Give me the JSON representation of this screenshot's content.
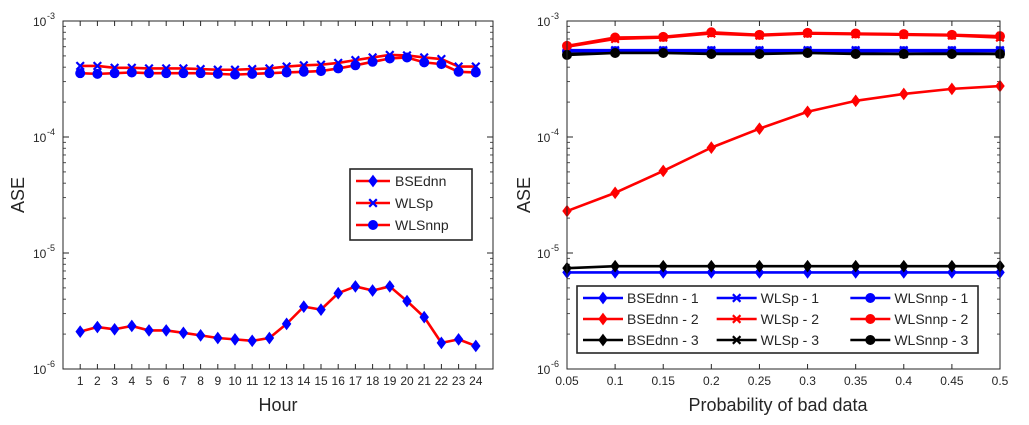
{
  "chart_data": [
    {
      "type": "line",
      "yscale": "log",
      "ylim": [
        1e-06,
        0.001
      ],
      "xlim": [
        0,
        25
      ],
      "xlabel": "Hour",
      "ylabel": "ASE",
      "x": [
        1,
        2,
        3,
        4,
        5,
        6,
        7,
        8,
        9,
        10,
        11,
        12,
        13,
        14,
        15,
        16,
        17,
        18,
        19,
        20,
        21,
        22,
        23,
        24
      ],
      "x_tick_labels": [
        "1",
        "2",
        "3",
        "4",
        "5",
        "6",
        "7",
        "8",
        "9",
        "10",
        "11",
        "12",
        "13",
        "14",
        "15",
        "16",
        "17",
        "18",
        "19",
        "20",
        "21",
        "22",
        "23",
        "24"
      ],
      "y_tick_labels": [
        {
          "base": "10",
          "exp": "-6",
          "value": 1e-06
        },
        {
          "base": "10",
          "exp": "-5",
          "value": 1e-05
        },
        {
          "base": "10",
          "exp": "-4",
          "value": 0.0001
        },
        {
          "base": "10",
          "exp": "-3",
          "value": 0.001
        }
      ],
      "legend_position": "center-right",
      "series": [
        {
          "name": "BSEdnn",
          "marker": "diamond",
          "line_color": "#ff0000",
          "marker_color": "#0000ff",
          "values": [
            2.1e-06,
            2.3e-06,
            2.2e-06,
            2.35e-06,
            2.15e-06,
            2.15e-06,
            2.05e-06,
            1.95e-06,
            1.85e-06,
            1.8e-06,
            1.75e-06,
            1.85e-06,
            2.45e-06,
            3.45e-06,
            3.25e-06,
            4.5e-06,
            5.15e-06,
            4.75e-06,
            5.15e-06,
            3.85e-06,
            2.8e-06,
            1.68e-06,
            1.8e-06,
            1.58e-06
          ]
        },
        {
          "name": "WLSp",
          "marker": "x",
          "line_color": "#ff0000",
          "marker_color": "#0000ff",
          "values": [
            0.00041,
            0.00041,
            0.000395,
            0.000395,
            0.00039,
            0.00039,
            0.00039,
            0.000385,
            0.00038,
            0.00038,
            0.000385,
            0.00039,
            0.000405,
            0.000415,
            0.00042,
            0.000435,
            0.00046,
            0.000485,
            0.00051,
            0.000505,
            0.000485,
            0.00047,
            0.000405,
            0.000405
          ]
        },
        {
          "name": "WLSnnp",
          "marker": "circle",
          "line_color": "#ff0000",
          "marker_color": "#0000ff",
          "values": [
            0.000355,
            0.00035,
            0.000355,
            0.00036,
            0.000355,
            0.000355,
            0.000355,
            0.000355,
            0.00035,
            0.000345,
            0.00035,
            0.000355,
            0.00036,
            0.000365,
            0.00037,
            0.00039,
            0.000415,
            0.000445,
            0.000475,
            0.000485,
            0.00044,
            0.000425,
            0.000365,
            0.00036
          ]
        }
      ]
    },
    {
      "type": "line",
      "yscale": "log",
      "ylim": [
        1e-06,
        0.001
      ],
      "xlim": [
        0.05,
        0.5
      ],
      "xlabel": "Probability of bad data",
      "ylabel": "ASE",
      "x": [
        0.05,
        0.1,
        0.15,
        0.2,
        0.25,
        0.3,
        0.35,
        0.4,
        0.45,
        0.5
      ],
      "x_tick_labels": [
        "0.05",
        "0.1",
        "0.15",
        "0.2",
        "0.25",
        "0.3",
        "0.35",
        "0.4",
        "0.45",
        "0.5"
      ],
      "y_tick_labels": [
        {
          "base": "10",
          "exp": "-6",
          "value": 1e-06
        },
        {
          "base": "10",
          "exp": "-5",
          "value": 1e-05
        },
        {
          "base": "10",
          "exp": "-4",
          "value": 0.0001
        },
        {
          "base": "10",
          "exp": "-3",
          "value": 0.001
        }
      ],
      "legend_position": "bottom",
      "series": [
        {
          "name": "BSEdnn - 1",
          "marker": "diamond",
          "color": "#0000ff",
          "values": [
            6.8e-06,
            6.8e-06,
            6.8e-06,
            6.8e-06,
            6.8e-06,
            6.8e-06,
            6.8e-06,
            6.8e-06,
            6.8e-06,
            6.8e-06
          ]
        },
        {
          "name": "BSEdnn - 2",
          "marker": "diamond",
          "color": "#ff0000",
          "values": [
            2.3e-05,
            3.3e-05,
            5.1e-05,
            8.1e-05,
            0.000118,
            0.000165,
            0.000205,
            0.000235,
            0.00026,
            0.000275
          ]
        },
        {
          "name": "BSEdnn - 3",
          "marker": "diamond",
          "color": "#000000",
          "values": [
            7.4e-06,
            7.7e-06,
            7.7e-06,
            7.7e-06,
            7.7e-06,
            7.7e-06,
            7.7e-06,
            7.7e-06,
            7.7e-06,
            7.7e-06
          ]
        },
        {
          "name": "WLSp - 1",
          "marker": "x",
          "color": "#0000ff",
          "values": [
            0.00056,
            0.00056,
            0.00056,
            0.00056,
            0.00056,
            0.00056,
            0.00056,
            0.00056,
            0.00056,
            0.00056
          ]
        },
        {
          "name": "WLSp - 2",
          "marker": "x",
          "color": "#ff0000",
          "values": [
            0.0006,
            0.0007,
            0.00072,
            0.00078,
            0.00075,
            0.00078,
            0.00077,
            0.00076,
            0.00075,
            0.00072
          ]
        },
        {
          "name": "WLSp - 3",
          "marker": "x",
          "color": "#000000",
          "values": [
            0.00052,
            0.00054,
            0.00054,
            0.00053,
            0.00053,
            0.00054,
            0.00053,
            0.00052,
            0.00053,
            0.00052
          ]
        },
        {
          "name": "WLSnnp - 1",
          "marker": "circle",
          "color": "#0000ff",
          "values": [
            0.00055,
            0.00055,
            0.00055,
            0.00055,
            0.00055,
            0.00055,
            0.00055,
            0.00055,
            0.00055,
            0.00055
          ]
        },
        {
          "name": "WLSnnp - 2",
          "marker": "circle",
          "color": "#ff0000",
          "values": [
            0.00061,
            0.00072,
            0.00073,
            0.0008,
            0.00076,
            0.00079,
            0.00078,
            0.00077,
            0.00076,
            0.00074
          ]
        },
        {
          "name": "WLSnnp - 3",
          "marker": "circle",
          "color": "#000000",
          "values": [
            0.00051,
            0.00053,
            0.00053,
            0.00052,
            0.00052,
            0.00053,
            0.00052,
            0.00052,
            0.00052,
            0.00052
          ]
        }
      ]
    }
  ]
}
